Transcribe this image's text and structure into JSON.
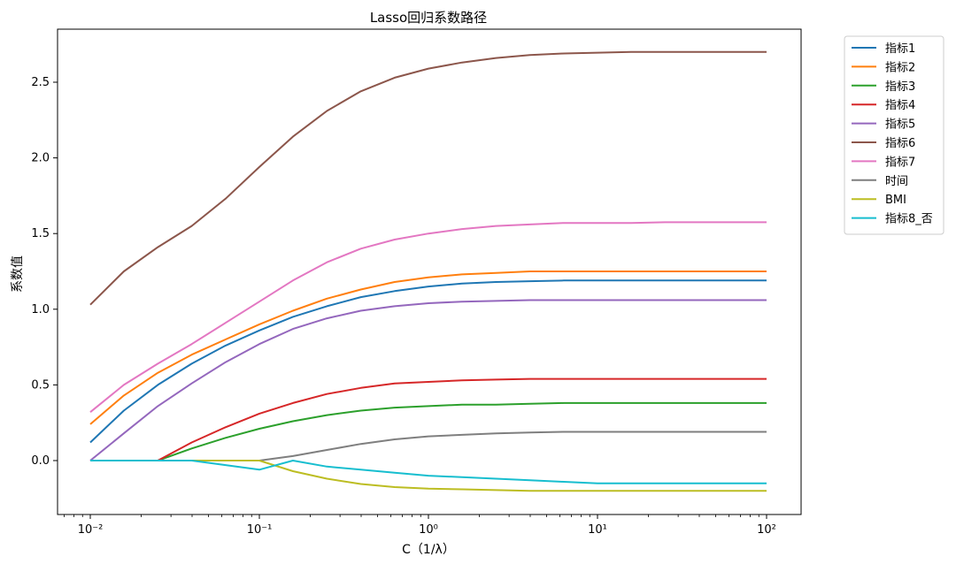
{
  "chart_data": {
    "type": "line",
    "title": "Lasso回归系数路径",
    "xlabel": "C（1/λ）",
    "ylabel": "系数值",
    "x_scale": "log",
    "xlim": [
      0.01,
      100
    ],
    "ylim": [
      -0.35,
      2.85
    ],
    "x_ticks": [
      0.01,
      0.1,
      1,
      10,
      100
    ],
    "x_tick_labels": [
      "10⁻²",
      "10⁻¹",
      "10⁰",
      "10¹",
      "10²"
    ],
    "y_ticks": [
      0.0,
      0.5,
      1.0,
      1.5,
      2.0,
      2.5
    ],
    "y_tick_labels": [
      "0.0",
      "0.5",
      "1.0",
      "1.5",
      "2.0",
      "2.5"
    ],
    "grid": false,
    "legend_position": "outside-top-right",
    "x": [
      0.01,
      0.0158,
      0.0251,
      0.0398,
      0.0631,
      0.1,
      0.158,
      0.251,
      0.398,
      0.631,
      1,
      1.58,
      2.51,
      3.98,
      6.31,
      10,
      15.8,
      25.1,
      39.8,
      63.1,
      100
    ],
    "series": [
      {
        "name": "指标1",
        "color": "#1f77b4",
        "values": [
          0.12,
          0.33,
          0.5,
          0.64,
          0.76,
          0.86,
          0.95,
          1.02,
          1.08,
          1.12,
          1.15,
          1.17,
          1.18,
          1.185,
          1.19,
          1.19,
          1.19,
          1.19,
          1.19,
          1.19,
          1.19
        ]
      },
      {
        "name": "指标2",
        "color": "#ff7f0e",
        "values": [
          0.24,
          0.43,
          0.58,
          0.7,
          0.8,
          0.9,
          0.99,
          1.07,
          1.13,
          1.18,
          1.21,
          1.23,
          1.24,
          1.25,
          1.25,
          1.25,
          1.25,
          1.25,
          1.25,
          1.25,
          1.25
        ]
      },
      {
        "name": "指标3",
        "color": "#2ca02c",
        "values": [
          0.0,
          0.0,
          0.0,
          0.08,
          0.15,
          0.21,
          0.26,
          0.3,
          0.33,
          0.35,
          0.36,
          0.37,
          0.37,
          0.375,
          0.38,
          0.38,
          0.38,
          0.38,
          0.38,
          0.38,
          0.38
        ]
      },
      {
        "name": "指标4",
        "color": "#d62728",
        "values": [
          0.0,
          0.0,
          0.0,
          0.12,
          0.22,
          0.31,
          0.38,
          0.44,
          0.48,
          0.51,
          0.52,
          0.53,
          0.535,
          0.54,
          0.54,
          0.54,
          0.54,
          0.54,
          0.54,
          0.54,
          0.54
        ]
      },
      {
        "name": "指标5",
        "color": "#9467bd",
        "values": [
          0.0,
          0.18,
          0.36,
          0.51,
          0.65,
          0.77,
          0.87,
          0.94,
          0.99,
          1.02,
          1.04,
          1.05,
          1.055,
          1.06,
          1.06,
          1.06,
          1.06,
          1.06,
          1.06,
          1.06,
          1.06
        ]
      },
      {
        "name": "指标6",
        "color": "#8c564b",
        "values": [
          1.03,
          1.25,
          1.41,
          1.55,
          1.73,
          1.94,
          2.14,
          2.31,
          2.44,
          2.53,
          2.59,
          2.63,
          2.66,
          2.68,
          2.69,
          2.695,
          2.7,
          2.7,
          2.7,
          2.7,
          2.7
        ]
      },
      {
        "name": "指标7",
        "color": "#e377c2",
        "values": [
          0.32,
          0.5,
          0.64,
          0.77,
          0.91,
          1.05,
          1.19,
          1.31,
          1.4,
          1.46,
          1.5,
          1.53,
          1.55,
          1.56,
          1.57,
          1.57,
          1.57,
          1.575,
          1.575,
          1.575,
          1.575
        ]
      },
      {
        "name": "时间",
        "color": "#7f7f7f",
        "values": [
          0.0,
          0.0,
          0.0,
          0.0,
          0.0,
          0.0,
          0.03,
          0.07,
          0.11,
          0.14,
          0.16,
          0.17,
          0.18,
          0.185,
          0.19,
          0.19,
          0.19,
          0.19,
          0.19,
          0.19,
          0.19
        ]
      },
      {
        "name": "BMI",
        "color": "#bcbd22",
        "values": [
          0.0,
          0.0,
          0.0,
          0.0,
          0.0,
          0.0,
          -0.07,
          -0.12,
          -0.155,
          -0.175,
          -0.185,
          -0.19,
          -0.195,
          -0.2,
          -0.2,
          -0.2,
          -0.2,
          -0.2,
          -0.2,
          -0.2,
          -0.2
        ]
      },
      {
        "name": "指标8_否",
        "color": "#17becf",
        "values": [
          0.0,
          0.0,
          0.0,
          0.0,
          -0.03,
          -0.06,
          0.0,
          -0.04,
          -0.06,
          -0.08,
          -0.1,
          -0.11,
          -0.12,
          -0.13,
          -0.14,
          -0.15,
          -0.15,
          -0.15,
          -0.15,
          -0.15,
          -0.15
        ]
      }
    ]
  }
}
